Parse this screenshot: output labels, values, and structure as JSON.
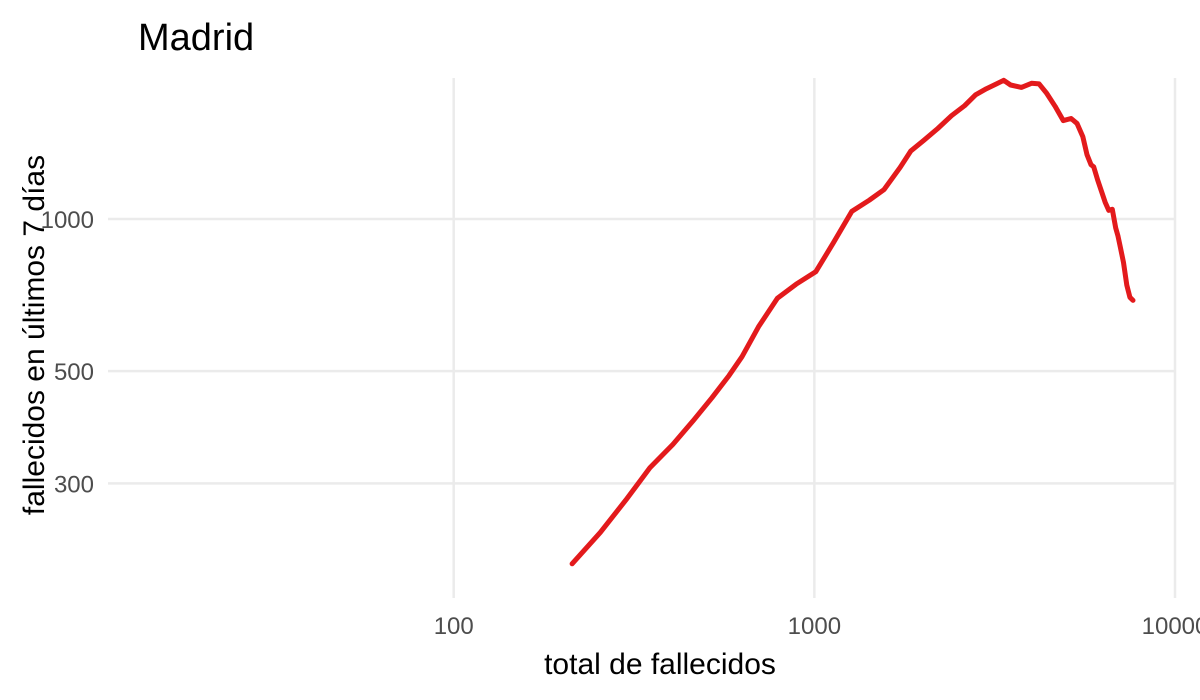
{
  "chart_data": {
    "type": "line",
    "title": "Madrid",
    "xlabel": "total de fallecidos",
    "ylabel": "fallecidos en últimos 7 días",
    "x_scale": "log10",
    "y_scale": "log10",
    "xlim": [
      11,
      10000
    ],
    "ylim": [
      178,
      1900
    ],
    "x_ticks": [
      100,
      1000,
      10000
    ],
    "x_tick_labels": [
      "100",
      "1000",
      "10000"
    ],
    "y_ticks": [
      300,
      500,
      1000
    ],
    "y_tick_labels": [
      "300",
      "500",
      "1000"
    ],
    "grid": true,
    "legend": "none",
    "colors": {
      "series": "#e31a1c",
      "grid": "#ebebeb",
      "tick_text": "#4d4d4d"
    },
    "series": [
      {
        "x": [
          213,
          255,
          300,
          350,
          405,
          460,
          520,
          580,
          630,
          700,
          790,
          890,
          1010,
          1130,
          1270,
          1420,
          1560,
          1730,
          1850,
          2010,
          2200,
          2400,
          2610,
          2800,
          3000,
          3200,
          3350,
          3500,
          3750,
          4000,
          4200,
          4400,
          4650,
          4900,
          5150,
          5350,
          5550,
          5700,
          5850,
          5950,
          6100,
          6250,
          6400,
          6550,
          6700,
          6850,
          6950,
          7050,
          7200,
          7350,
          7500,
          7650
        ],
        "y": [
          208,
          240,
          278,
          322,
          358,
          398,
          443,
          490,
          534,
          612,
          697,
          743,
          787,
          898,
          1035,
          1089,
          1143,
          1265,
          1362,
          1430,
          1510,
          1600,
          1675,
          1760,
          1810,
          1850,
          1880,
          1840,
          1820,
          1855,
          1850,
          1775,
          1670,
          1565,
          1580,
          1545,
          1455,
          1340,
          1280,
          1268,
          1195,
          1135,
          1080,
          1040,
          1045,
          960,
          925,
          880,
          820,
          740,
          700,
          690
        ]
      }
    ]
  }
}
